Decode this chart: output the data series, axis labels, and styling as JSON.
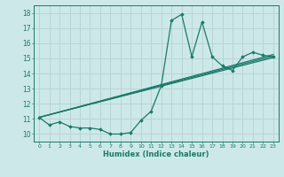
{
  "xlabel": "Humidex (Indice chaleur)",
  "xlim": [
    -0.5,
    23.5
  ],
  "ylim": [
    9.5,
    18.5
  ],
  "xticks": [
    0,
    1,
    2,
    3,
    4,
    5,
    6,
    7,
    8,
    9,
    10,
    11,
    12,
    13,
    14,
    15,
    16,
    17,
    18,
    19,
    20,
    21,
    22,
    23
  ],
  "yticks": [
    10,
    11,
    12,
    13,
    14,
    15,
    16,
    17,
    18
  ],
  "bg_color": "#cde8e8",
  "grid_color": "#b8d4d4",
  "line_color": "#1a7a6a",
  "main_line": {
    "x": [
      0,
      1,
      2,
      3,
      4,
      5,
      6,
      7,
      8,
      9,
      10,
      11,
      12,
      13,
      14,
      15,
      16,
      17,
      18,
      19,
      20,
      21,
      22,
      23
    ],
    "y": [
      11.1,
      10.6,
      10.8,
      10.5,
      10.4,
      10.4,
      10.3,
      10.0,
      10.0,
      10.1,
      10.9,
      11.5,
      13.2,
      17.5,
      17.9,
      15.1,
      17.4,
      15.1,
      14.5,
      14.2,
      15.1,
      15.4,
      15.2,
      15.1
    ]
  },
  "straight_lines": [
    {
      "x": [
        0,
        23
      ],
      "y": [
        11.1,
        15.05
      ]
    },
    {
      "x": [
        0,
        23
      ],
      "y": [
        11.1,
        15.15
      ]
    },
    {
      "x": [
        0,
        23
      ],
      "y": [
        11.1,
        15.25
      ]
    }
  ],
  "figsize": [
    3.2,
    2.0
  ],
  "dpi": 100
}
